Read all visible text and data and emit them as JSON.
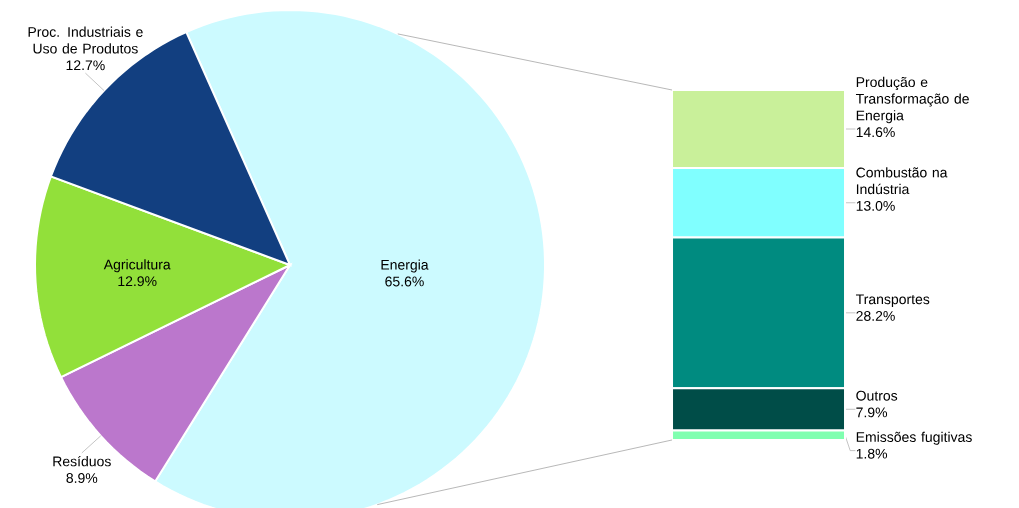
{
  "chart_data": [
    {
      "type": "pie",
      "categories": [
        "Energia",
        "Resíduos",
        "Agricultura",
        "Proc. Industriais e Uso de Produtos"
      ],
      "values": [
        65.6,
        8.9,
        12.9,
        12.7
      ],
      "colors": [
        "#ccfaff",
        "#bb77cc",
        "#92e03a",
        "#123f80"
      ],
      "value_labels": [
        "65.6%",
        "8.9%",
        "12.9%",
        "12.7%"
      ]
    },
    {
      "type": "bar",
      "stacked": true,
      "categories": [
        null
      ],
      "series": [
        {
          "name": "Emissões fugitivas",
          "color": "#80ffb0",
          "values": [
            1.8
          ],
          "value_labels": [
            "1.8%"
          ]
        },
        {
          "name": "Outros",
          "color": "#004d48",
          "values": [
            7.9
          ],
          "value_labels": [
            "7.9%"
          ]
        },
        {
          "name": "Transportes",
          "color": "#008b80",
          "values": [
            28.2
          ],
          "value_labels": [
            "28.2%"
          ]
        },
        {
          "name": "Combustão na Indústria",
          "color": "#80ffff",
          "values": [
            13.0
          ],
          "value_labels": [
            "13.0%"
          ]
        },
        {
          "name": "Produção e Transformação de Energia",
          "color": "#c9f09a",
          "values": [
            14.6
          ],
          "value_labels": [
            "14.6%"
          ]
        }
      ]
    }
  ]
}
